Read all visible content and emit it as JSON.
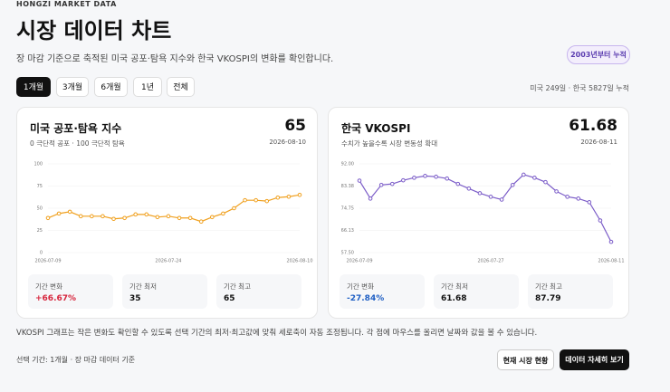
{
  "header": {
    "eyebrow": "HONGZI MARKET DATA",
    "title": "시장 데이터 차트",
    "subtitle": "장 마감 기준으로 축적된 미국 공포·탐욕 지수와 한국 VKOSPI의 변화를 확인합니다.",
    "badge": "2003년부터 누적"
  },
  "tabs": {
    "items": [
      "1개월",
      "3개월",
      "6개월",
      "1년",
      "전체"
    ],
    "active": 0
  },
  "counts": "미국 249일 · 한국 5827일 누적",
  "cards": [
    {
      "title": "미국 공포·탐욕 지수",
      "value": 65,
      "date": "2026-08-10",
      "subtitle": "0 극단적 공포 · 100 극단적 탐욕",
      "stats": [
        {
          "label": "기간 변화",
          "value": "+66.67%",
          "color": "#d7263d"
        },
        {
          "label": "기간 최저",
          "value": "35"
        },
        {
          "label": "기간 최고",
          "value": "65"
        }
      ]
    },
    {
      "title": "한국 VKOSPI",
      "value": 61.68,
      "date": "2026-08-11",
      "subtitle": "수치가 높을수록 시장 변동성 확대",
      "stats": [
        {
          "label": "기간 변화",
          "value": "-27.84%",
          "color": "#1f5fc4"
        },
        {
          "label": "기간 최저",
          "value": "61.68"
        },
        {
          "label": "기간 최고",
          "value": "87.79"
        }
      ]
    }
  ],
  "chart_data": [
    {
      "type": "line",
      "color": "#f0a01e",
      "grid": true,
      "categories": [
        "2026-07-09",
        null,
        null,
        null,
        null,
        null,
        null,
        null,
        null,
        null,
        null,
        "2026-07-24",
        null,
        null,
        null,
        null,
        null,
        null,
        null,
        null,
        null,
        null,
        null,
        "2026-08-10"
      ],
      "values": [
        39,
        44,
        46,
        41,
        41,
        41,
        38,
        39,
        43,
        43,
        40,
        41,
        39,
        39,
        35,
        40,
        44,
        50,
        59,
        59,
        58,
        62,
        63,
        65
      ],
      "ylim": [
        0,
        100
      ],
      "yticks": [
        0,
        25,
        50,
        75,
        100
      ]
    },
    {
      "type": "line",
      "color": "#7b5cc8",
      "grid": true,
      "categories": [
        "2026-07-09",
        null,
        null,
        null,
        null,
        null,
        null,
        null,
        null,
        null,
        null,
        null,
        "2026-07-27",
        null,
        null,
        null,
        null,
        null,
        null,
        null,
        null,
        null,
        null,
        "2026-08-11"
      ],
      "values": [
        85.48,
        78.5,
        83.8,
        84.2,
        85.6,
        86.6,
        87.3,
        87,
        86.3,
        84.2,
        82.4,
        80.6,
        79.2,
        78.1,
        83.8,
        87.79,
        86.6,
        84.9,
        81.3,
        79.2,
        78.5,
        77.1,
        70,
        61.68
      ],
      "ylim": [
        57.5,
        92
      ],
      "yticks": [
        {
          "value": 57.5,
          "label": "57.50"
        },
        {
          "value": 66.13,
          "label": "66.13"
        },
        {
          "value": 74.75,
          "label": "74.75"
        },
        {
          "value": 83.38,
          "label": "83.38"
        },
        {
          "value": 92,
          "label": "92.00"
        }
      ]
    }
  ],
  "note": "VKOSPI 그래프는 작은 변화도 확인할 수 있도록 선택 기간의 최저·최고값에 맞춰 세로축이 자동 조정됩니다. 각 점에 마우스를 올리면 날짜와 값을 볼 수 있습니다.",
  "footer": {
    "selection": "선택 기간: 1개월 · 장 마감 데이터 기준",
    "buttons": [
      "현재 시장 현황",
      "데이터 자세히 보기"
    ]
  }
}
